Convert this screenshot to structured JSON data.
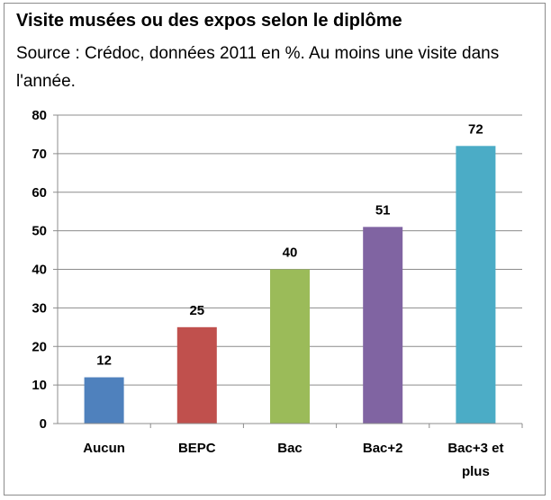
{
  "chart_data": {
    "type": "bar",
    "title": "Visite musées ou des expos selon le diplôme",
    "subtitle": "Source : Crédoc, données 2011 en %. Au moins une visite dans l'année.",
    "categories": [
      "Aucun",
      "BEPC",
      "Bac",
      "Bac+2",
      "Bac+3 et plus"
    ],
    "category_lines": [
      [
        "Aucun"
      ],
      [
        "BEPC"
      ],
      [
        "Bac"
      ],
      [
        "Bac+2"
      ],
      [
        "Bac+3 et",
        "plus"
      ]
    ],
    "values": [
      12,
      25,
      40,
      51,
      72
    ],
    "data_labels": [
      "12",
      "25",
      "40",
      "51",
      "72"
    ],
    "colors": [
      "#4f81bd",
      "#c0504d",
      "#9bbb59",
      "#8064a2",
      "#4bacc6"
    ],
    "ylim": [
      0,
      80
    ],
    "yticks": [
      0,
      10,
      20,
      30,
      40,
      50,
      60,
      70,
      80
    ],
    "grid": true,
    "legend": "none",
    "xlabel": "",
    "ylabel": ""
  }
}
